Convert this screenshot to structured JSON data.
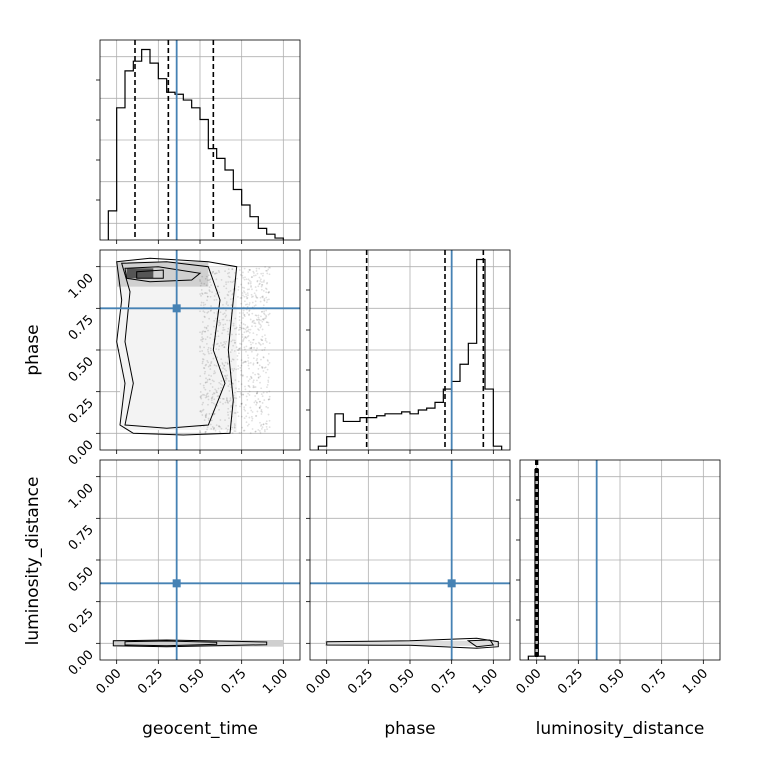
{
  "chart_data": {
    "type": "corner",
    "parameters": [
      "geocent_time",
      "phase",
      "luminosity_distance"
    ],
    "axis_range": [
      -0.1,
      1.1
    ],
    "tick_labels": [
      "0.00",
      "0.25",
      "0.50",
      "0.75",
      "1.00"
    ],
    "tick_values": [
      0,
      0.25,
      0.5,
      0.75,
      1.0
    ],
    "grid": true,
    "colors": {
      "truth": "#4682b4",
      "line": "#000000",
      "quantile": "#000000"
    },
    "truths": {
      "geocent_time": 0.36,
      "phase": 0.75,
      "luminosity_distance": 0.36
    },
    "quantiles": {
      "geocent_time": [
        0.11,
        0.31,
        0.58
      ],
      "phase": [
        0.24,
        0.71,
        0.94
      ],
      "luminosity_distance": [
        -0.005,
        0.0,
        0.005
      ]
    },
    "histograms": {
      "geocent_time": {
        "edges": [
          -0.05,
          0.0,
          0.05,
          0.1,
          0.15,
          0.2,
          0.25,
          0.3,
          0.35,
          0.4,
          0.45,
          0.5,
          0.55,
          0.6,
          0.65,
          0.7,
          0.75,
          0.8,
          0.85,
          0.9,
          0.95,
          1.0
        ],
        "counts": [
          0.15,
          0.68,
          0.87,
          0.92,
          0.98,
          0.91,
          0.83,
          0.76,
          0.75,
          0.72,
          0.68,
          0.62,
          0.47,
          0.42,
          0.36,
          0.26,
          0.18,
          0.12,
          0.06,
          0.03,
          0.01
        ]
      },
      "phase": {
        "edges": [
          -0.05,
          0.0,
          0.05,
          0.1,
          0.15,
          0.2,
          0.25,
          0.3,
          0.35,
          0.4,
          0.45,
          0.5,
          0.55,
          0.6,
          0.65,
          0.7,
          0.75,
          0.8,
          0.85,
          0.9,
          0.95,
          1.0,
          1.05
        ],
        "counts": [
          0.02,
          0.07,
          0.19,
          0.15,
          0.15,
          0.17,
          0.17,
          0.18,
          0.19,
          0.19,
          0.2,
          0.19,
          0.21,
          0.22,
          0.25,
          0.32,
          0.36,
          0.45,
          0.56,
          1.0,
          0.32,
          0.02
        ]
      },
      "luminosity_distance": {
        "edges": [
          -0.05,
          -0.01,
          0.01,
          0.05
        ],
        "counts": [
          0.02,
          1.0,
          0.02
        ]
      }
    },
    "pairs": [
      {
        "x": "geocent_time",
        "y": "phase"
      },
      {
        "x": "geocent_time",
        "y": "luminosity_distance"
      },
      {
        "x": "phase",
        "y": "luminosity_distance"
      }
    ]
  }
}
